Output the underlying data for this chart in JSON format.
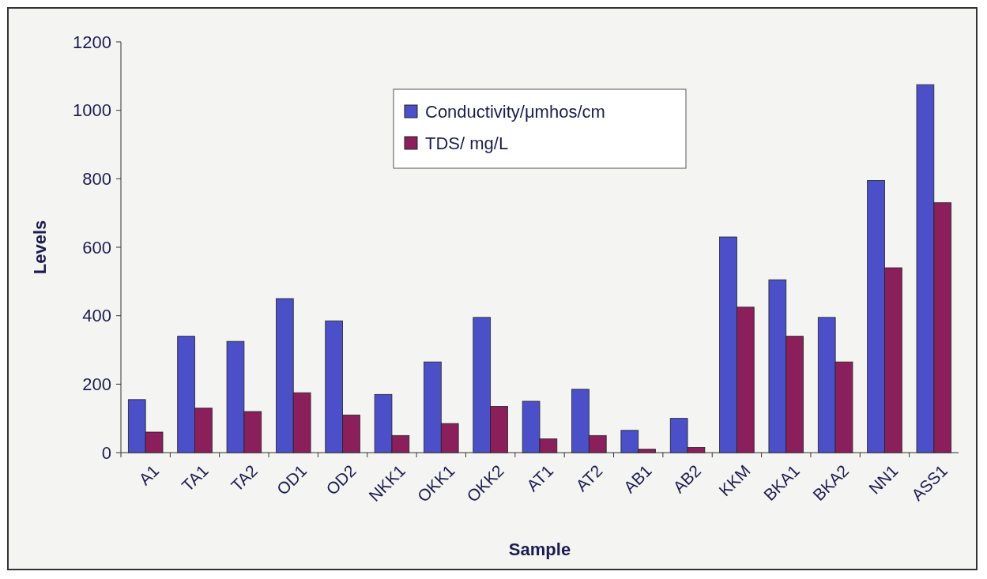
{
  "chart_data": {
    "type": "bar",
    "xlabel": "Sample",
    "ylabel": "Levels",
    "categories": [
      "A1",
      "TA1",
      "TA2",
      "OD1",
      "OD2",
      "NKK1",
      "OKK1",
      "OKK2",
      "AT1",
      "AT2",
      "AB1",
      "AB2",
      "KKM",
      "BKA1",
      "BKA2",
      "NN1",
      "ASS1"
    ],
    "series": [
      {
        "name": "Conductivity/μmhos/cm",
        "color": "#4b4fc8",
        "values": [
          155,
          340,
          325,
          450,
          385,
          170,
          265,
          395,
          150,
          185,
          65,
          100,
          630,
          505,
          395,
          795,
          1075
        ]
      },
      {
        "name": "TDS/ mg/L",
        "color": "#8a1f5c",
        "values": [
          60,
          130,
          120,
          175,
          110,
          50,
          85,
          135,
          40,
          50,
          10,
          15,
          425,
          340,
          265,
          540,
          730
        ]
      }
    ],
    "ylim": [
      0,
      1200
    ],
    "yticks": [
      0,
      200,
      400,
      600,
      800,
      1000,
      1200
    ],
    "grid": false,
    "legend": "top"
  }
}
